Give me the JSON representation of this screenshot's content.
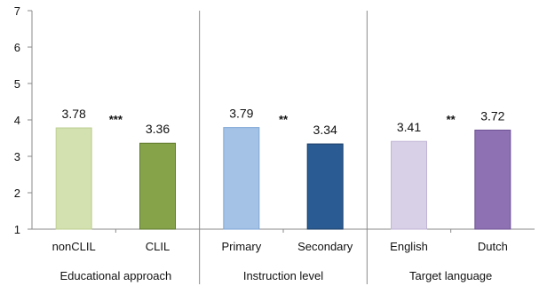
{
  "chart_data": {
    "type": "bar",
    "title": "",
    "xlabel": "",
    "ylabel": "",
    "ylim": [
      1,
      7
    ],
    "yticks": [
      "1",
      "2",
      "3",
      "4",
      "5",
      "6",
      "7"
    ],
    "grid": false,
    "legend": "none",
    "groups": [
      {
        "label": "Educational approach",
        "significance": "***",
        "bars": [
          {
            "category": "nonCLIL",
            "value": 3.78,
            "label": "3.78",
            "color": "#d3e0b0",
            "stroke": "#bcd090"
          },
          {
            "category": "CLIL",
            "value": 3.36,
            "label": "3.36",
            "color": "#86a34a",
            "stroke": "#5f7a2c"
          }
        ]
      },
      {
        "label": "Instruction level",
        "significance": "**",
        "bars": [
          {
            "category": "Primary",
            "value": 3.79,
            "label": "3.79",
            "color": "#a3c2e6",
            "stroke": "#7ea6d6"
          },
          {
            "category": "Secondary",
            "value": 3.34,
            "label": "3.34",
            "color": "#2a5c93",
            "stroke": "#1a3d66"
          }
        ]
      },
      {
        "label": "Target language",
        "significance": "**",
        "bars": [
          {
            "category": "English",
            "value": 3.41,
            "label": "3.41",
            "color": "#d8d0e6",
            "stroke": "#c0b4d6"
          },
          {
            "category": "Dutch",
            "value": 3.72,
            "label": "3.72",
            "color": "#8e71b3",
            "stroke": "#6e5296"
          }
        ]
      }
    ]
  }
}
